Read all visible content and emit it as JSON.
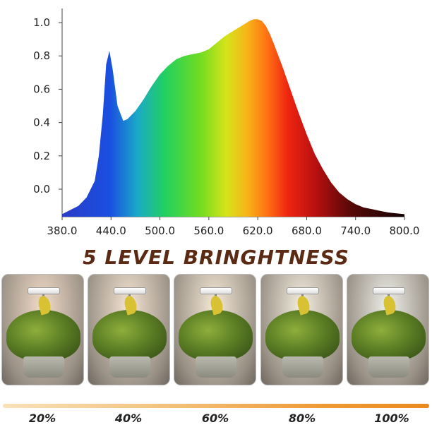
{
  "chart_data": {
    "type": "area",
    "title": "",
    "xlabel": "",
    "ylabel": "",
    "xlim": [
      380,
      800
    ],
    "ylim": [
      -0.15,
      1.05
    ],
    "x_ticks": [
      "380.0",
      "440.0",
      "500.0",
      "560.0",
      "620.0",
      "680.0",
      "740.0",
      "800.0"
    ],
    "y_ticks": [
      "0.0",
      "0.2",
      "0.4",
      "0.6",
      "0.8",
      "1.0"
    ],
    "x_tick_values": [
      380,
      440,
      500,
      560,
      620,
      680,
      740,
      800
    ],
    "y_tick_values": [
      0.0,
      0.2,
      0.4,
      0.6,
      0.8,
      1.0
    ],
    "grid": false,
    "fill": "visible spectrum gradient",
    "series": [
      {
        "x": [
          380,
          400,
          410,
          420,
          425,
          430,
          434,
          438,
          442,
          448,
          455,
          460,
          470,
          480,
          490,
          500,
          510,
          520,
          530,
          540,
          550,
          560,
          570,
          580,
          590,
          600,
          610,
          615,
          620,
          625,
          630,
          635,
          640,
          650,
          660,
          670,
          680,
          690,
          700,
          710,
          720,
          730,
          740,
          750,
          760,
          770,
          780,
          790,
          800
        ],
        "y": [
          -0.15,
          -0.1,
          -0.05,
          0.05,
          0.2,
          0.45,
          0.75,
          0.83,
          0.72,
          0.5,
          0.41,
          0.42,
          0.47,
          0.54,
          0.62,
          0.69,
          0.74,
          0.78,
          0.8,
          0.81,
          0.82,
          0.84,
          0.88,
          0.92,
          0.95,
          0.98,
          1.01,
          1.02,
          1.02,
          1.01,
          0.98,
          0.93,
          0.87,
          0.74,
          0.6,
          0.46,
          0.33,
          0.21,
          0.12,
          0.04,
          -0.02,
          -0.06,
          -0.09,
          -0.11,
          -0.12,
          -0.13,
          -0.14,
          -0.145,
          -0.15
        ]
      }
    ]
  },
  "headline": "5 LEVEL BRINGHTNESS",
  "brightness_levels": [
    "20%",
    "40%",
    "60%",
    "80%",
    "100%"
  ],
  "panel_glow_colors": [
    "#f3dcc8",
    "#f5e4d2",
    "#f6ead7",
    "#f5efe0",
    "#eef0ea"
  ],
  "colors": {
    "headline": "#5a2a14",
    "bar_start": "#f8e2b8",
    "bar_end": "#ea8a1e"
  }
}
